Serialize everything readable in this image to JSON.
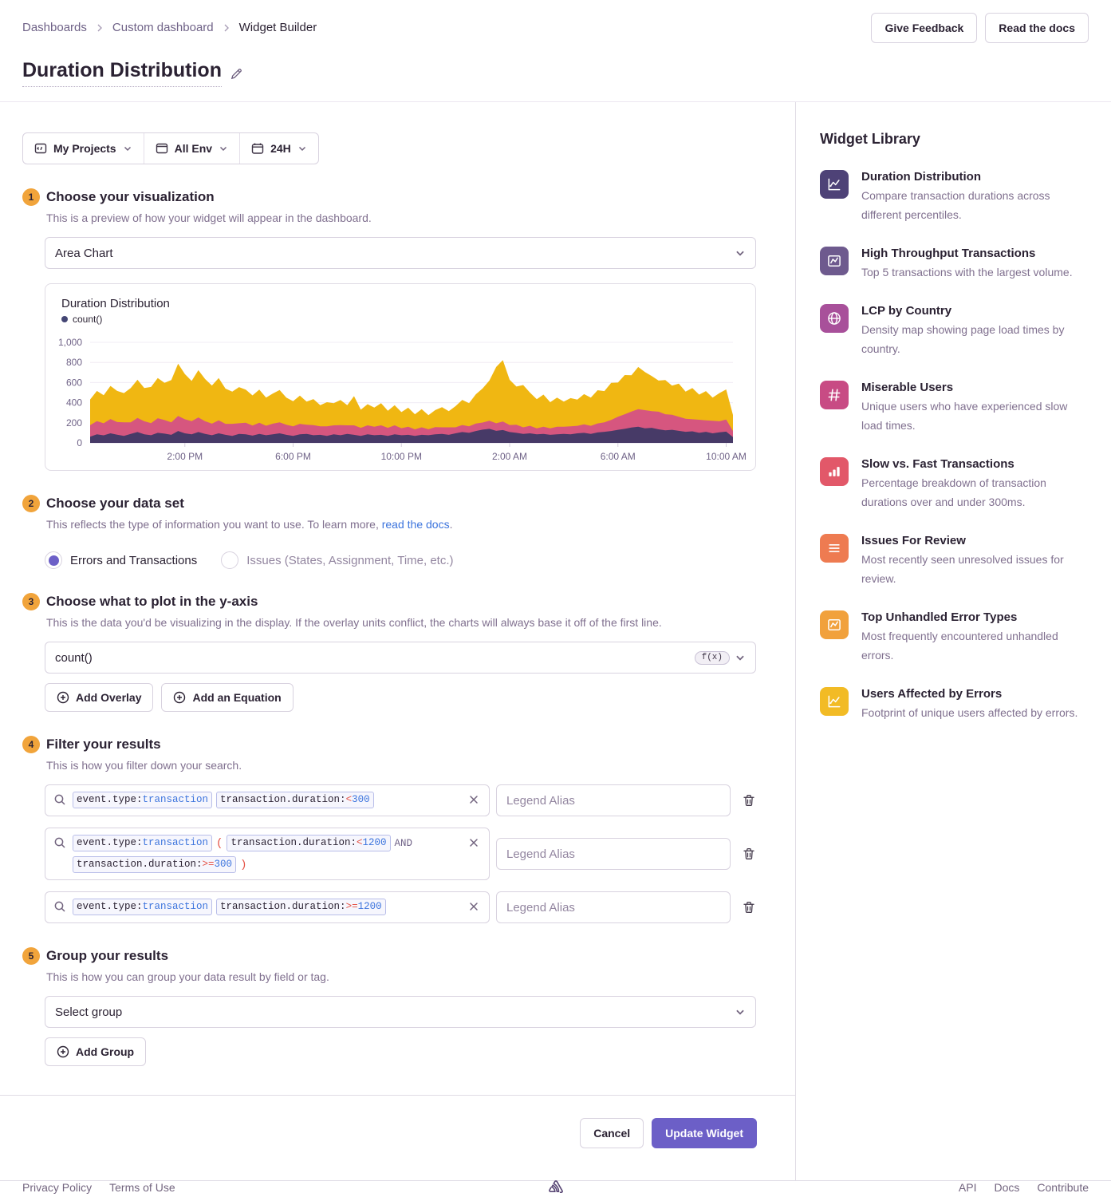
{
  "breadcrumbs": [
    "Dashboards",
    "Custom dashboard",
    "Widget Builder"
  ],
  "header": {
    "give_feedback": "Give Feedback",
    "read_docs": "Read the docs",
    "title": "Duration Distribution"
  },
  "filter_bar": {
    "projects": "My Projects",
    "env": "All Env",
    "time": "24H"
  },
  "steps": {
    "s1": {
      "num": "1",
      "title": "Choose your visualization",
      "desc": "This is a preview of how your widget will appear in the dashboard."
    },
    "s2": {
      "num": "2",
      "title": "Choose your data set",
      "desc_prefix": "This reflects the type of information you want to use. To learn more, ",
      "desc_link": "read the docs",
      "desc_suffix": "."
    },
    "s3": {
      "num": "3",
      "title": "Choose what to plot in the y-axis",
      "desc": "This is the data you'd be visualizing in the display. If the overlay units conflict, the charts will always base it off of the first line."
    },
    "s4": {
      "num": "4",
      "title": "Filter your results",
      "desc": "This is how you filter down your search."
    },
    "s5": {
      "num": "5",
      "title": "Group your results",
      "desc": "This is how you can group your data result by field or tag."
    }
  },
  "visualization": {
    "select_value": "Area Chart"
  },
  "chart_data": {
    "type": "area",
    "stacked": true,
    "title": "Duration Distribution",
    "legend_label": "count()",
    "legend_dot_color": "#444674",
    "ylim": [
      0,
      1000
    ],
    "grid": true,
    "yticks": [
      {
        "v": 0,
        "label": "0"
      },
      {
        "v": 200,
        "label": "200"
      },
      {
        "v": 400,
        "label": "400"
      },
      {
        "v": 600,
        "label": "600"
      },
      {
        "v": 800,
        "label": "800"
      },
      {
        "v": 1000,
        "label": "1,000"
      }
    ],
    "xticks": [
      {
        "i": 14,
        "label": "2:00 PM"
      },
      {
        "i": 30,
        "label": "6:00 PM"
      },
      {
        "i": 46,
        "label": "10:00 PM"
      },
      {
        "i": 62,
        "label": "2:00 AM"
      },
      {
        "i": 78,
        "label": "6:00 AM"
      },
      {
        "i": 94,
        "label": "10:00 AM"
      }
    ],
    "series": [
      {
        "id": "bottom",
        "color": "#473A67",
        "values": [
          62,
          85,
          75,
          95,
          82,
          70,
          90,
          108,
          85,
          76,
          100,
          92,
          80,
          118,
          95,
          86,
          108,
          90,
          76,
          95,
          80,
          70,
          90,
          85,
          72,
          90,
          76,
          86,
          95,
          80,
          70,
          85,
          90,
          76,
          80,
          70,
          85,
          76,
          90,
          80,
          70,
          85,
          76,
          80,
          70,
          85,
          76,
          80,
          70,
          80,
          76,
          86,
          90,
          80,
          95,
          108,
          100,
          118,
          132,
          140,
          120,
          128,
          108,
          100,
          90,
          95,
          85,
          90,
          80,
          86,
          90,
          85,
          95,
          100,
          90,
          104,
          110,
          118,
          130,
          140,
          152,
          160,
          145,
          150,
          135,
          125,
          130,
          120,
          110,
          115,
          100,
          110,
          95,
          105,
          112,
          58
        ]
      },
      {
        "id": "middle",
        "color": "#D6567F",
        "values": [
          115,
          132,
          120,
          142,
          125,
          135,
          115,
          140,
          130,
          120,
          145,
          135,
          125,
          150,
          140,
          130,
          145,
          125,
          115,
          130,
          110,
          120,
          105,
          115,
          100,
          110,
          95,
          105,
          110,
          100,
          95,
          105,
          90,
          100,
          85,
          95,
          90,
          100,
          85,
          95,
          80,
          90,
          85,
          95,
          80,
          90,
          70,
          80,
          65,
          75,
          60,
          70,
          65,
          75,
          60,
          70,
          65,
          75,
          70,
          80,
          75,
          85,
          70,
          80,
          65,
          75,
          60,
          70,
          65,
          75,
          70,
          80,
          75,
          85,
          80,
          90,
          95,
          110,
          130,
          145,
          160,
          175,
          180,
          165,
          175,
          160,
          150,
          140,
          130,
          120,
          130,
          115,
          125,
          110,
          120,
          60
        ]
      },
      {
        "id": "top",
        "color": "#F0B712",
        "values": [
          255,
          300,
          280,
          330,
          310,
          290,
          340,
          380,
          330,
          360,
          400,
          370,
          420,
          520,
          450,
          400,
          470,
          420,
          380,
          420,
          350,
          320,
          360,
          330,
          300,
          330,
          280,
          300,
          320,
          270,
          250,
          280,
          230,
          260,
          210,
          240,
          220,
          250,
          200,
          290,
          180,
          210,
          190,
          220,
          170,
          200,
          160,
          190,
          150,
          180,
          140,
          170,
          200,
          160,
          210,
          250,
          230,
          290,
          340,
          400,
          560,
          610,
          450,
          380,
          420,
          330,
          290,
          320,
          260,
          290,
          250,
          280,
          260,
          300,
          280,
          330,
          310,
          370,
          340,
          390,
          360,
          420,
          380,
          350,
          310,
          340,
          290,
          330,
          270,
          310,
          250,
          290,
          230,
          280,
          300,
          160
        ]
      }
    ]
  },
  "dataset": {
    "option1": "Errors and Transactions",
    "option2": "Issues (States, Assignment, Time, etc.)"
  },
  "yaxis": {
    "field": "count()",
    "fx": "f(x)",
    "add_overlay": "Add Overlay",
    "add_equation": "Add an Equation"
  },
  "filters": {
    "legend_placeholder": "Legend Alias",
    "rows": [
      {
        "segments": [
          {
            "type": "token",
            "key": "event.type:",
            "op": "",
            "val": "transaction"
          },
          {
            "type": "token",
            "key": "transaction.duration:",
            "op": "<",
            "val": "300"
          }
        ]
      },
      {
        "segments": [
          {
            "type": "token",
            "key": "event.type:",
            "op": "",
            "val": "transaction"
          },
          {
            "type": "paren",
            "text": "("
          },
          {
            "type": "token",
            "key": "transaction.duration:",
            "op": "<",
            "val": "1200"
          },
          {
            "type": "and",
            "text": "AND"
          },
          {
            "type": "token",
            "key": "transaction.duration:",
            "op": ">=",
            "val": "300"
          },
          {
            "type": "paren",
            "text": ")"
          }
        ]
      },
      {
        "segments": [
          {
            "type": "token",
            "key": "event.type:",
            "op": "",
            "val": "transaction"
          },
          {
            "type": "token",
            "key": "transaction.duration:",
            "op": ">=",
            "val": "1200"
          }
        ]
      }
    ]
  },
  "group": {
    "placeholder": "Select group",
    "add_group": "Add Group"
  },
  "actions": {
    "cancel": "Cancel",
    "update": "Update Widget"
  },
  "widget_library": {
    "title": "Widget Library",
    "items": [
      {
        "title": "Duration Distribution",
        "desc": "Compare transaction durations across different percentiles.",
        "color": "#4E4277",
        "icon": "chart-line"
      },
      {
        "title": "High Throughput Transactions",
        "desc": "Top 5 transactions with the largest volume.",
        "color": "#6E5A8E",
        "icon": "chart-boxed"
      },
      {
        "title": "LCP by Country",
        "desc": "Density map showing page load times by country.",
        "color": "#A8509A",
        "icon": "globe"
      },
      {
        "title": "Miserable Users",
        "desc": "Unique users who have experienced slow load times.",
        "color": "#C84B84",
        "icon": "hash"
      },
      {
        "title": "Slow vs. Fast Transactions",
        "desc": "Percentage breakdown of transaction durations over and under 300ms.",
        "color": "#E25869",
        "icon": "bars"
      },
      {
        "title": "Issues For Review",
        "desc": "Most recently seen unresolved issues for review.",
        "color": "#EE7B51",
        "icon": "list"
      },
      {
        "title": "Top Unhandled Error Types",
        "desc": "Most frequently encountered unhandled errors.",
        "color": "#F1A13C",
        "icon": "chart-boxed"
      },
      {
        "title": "Users Affected by Errors",
        "desc": "Footprint of unique users affected by errors.",
        "color": "#F2BB25",
        "icon": "chart-line"
      }
    ]
  },
  "footer": {
    "privacy": "Privacy Policy",
    "terms": "Terms of Use",
    "api": "API",
    "docs": "Docs",
    "contribute": "Contribute"
  }
}
